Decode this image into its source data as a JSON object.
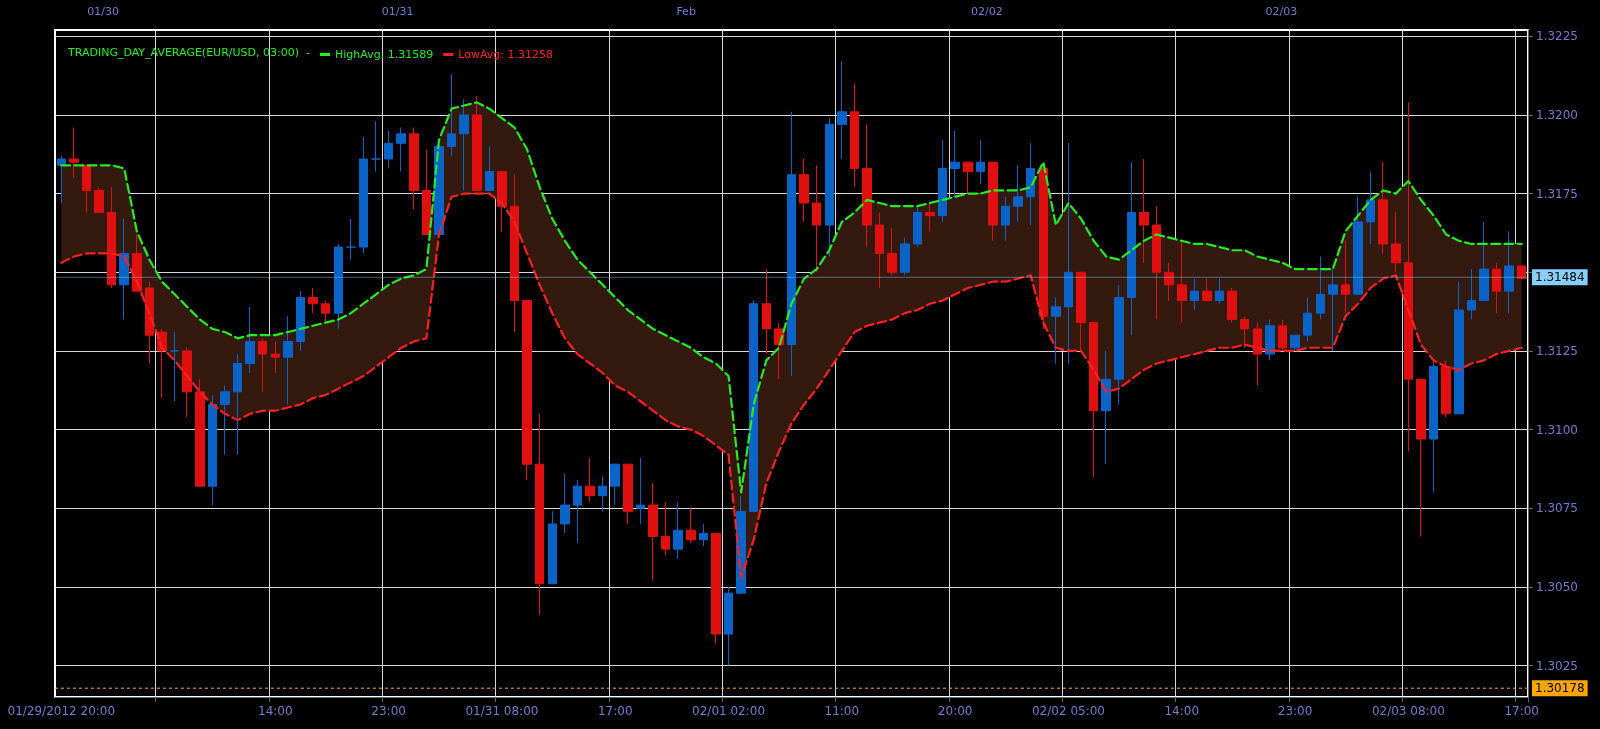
{
  "chart_data": {
    "type": "candlestick",
    "title": "TRADING_DAY_AVERAGE(EUR/USD, 03:00)  -",
    "categories": [
      "01/29/2012 20:00",
      null,
      null,
      null,
      null,
      null,
      null,
      null,
      null,
      null,
      null,
      null,
      null,
      null,
      null,
      null,
      null,
      "14:00",
      null,
      null,
      null,
      null,
      null,
      null,
      null,
      null,
      "23:00",
      null,
      null,
      null,
      null,
      null,
      null,
      null,
      null,
      "01/31 08:00",
      null,
      null,
      null,
      null,
      null,
      null,
      null,
      null,
      "17:00",
      null,
      null,
      null,
      null,
      null,
      null,
      null,
      null,
      "02/01 02:00",
      null,
      null,
      null,
      null,
      null,
      null,
      null,
      null,
      "11:00",
      null,
      null,
      null,
      null,
      null,
      null,
      null,
      null,
      "20:00",
      null,
      null,
      null,
      null,
      null,
      null,
      null,
      null,
      "02/02 05:00",
      null,
      null,
      null,
      null,
      null,
      null,
      null,
      null,
      "14:00",
      null,
      null,
      null,
      null,
      null,
      null,
      null,
      null,
      "23:00",
      null,
      null,
      null,
      null,
      null,
      null,
      null,
      null,
      "02/03 08:00",
      null,
      null,
      null,
      null,
      null,
      null,
      null,
      null,
      "17:00"
    ],
    "ohlc": [
      [
        1.3184,
        1.3187,
        1.3172,
        1.3186
      ],
      [
        1.3186,
        1.3196,
        1.318,
        1.3185
      ],
      [
        1.3184,
        1.3184,
        1.3169,
        1.3176
      ],
      [
        1.3176,
        1.3177,
        1.3169,
        1.3169
      ],
      [
        1.3169,
        1.3177,
        1.3145,
        1.3146
      ],
      [
        1.3146,
        1.3167,
        1.3135,
        1.3156
      ],
      [
        1.3156,
        1.3162,
        1.3144,
        1.3144
      ],
      [
        1.3145,
        1.3147,
        1.3121,
        1.313
      ],
      [
        1.3131,
        1.3132,
        1.311,
        1.3125
      ],
      [
        1.3125,
        1.3131,
        1.3109,
        1.3125
      ],
      [
        1.3125,
        1.3126,
        1.3104,
        1.3112
      ],
      [
        1.3112,
        1.3116,
        1.3082,
        1.3082
      ],
      [
        1.3082,
        1.3111,
        1.3076,
        1.3108
      ],
      [
        1.3108,
        1.3114,
        1.3092,
        1.3112
      ],
      [
        1.3112,
        1.3124,
        1.3092,
        1.3121
      ],
      [
        1.3121,
        1.3139,
        1.3118,
        1.3128
      ],
      [
        1.3128,
        1.3129,
        1.3112,
        1.3124
      ],
      [
        1.3124,
        1.3128,
        1.3118,
        1.3123
      ],
      [
        1.3123,
        1.3136,
        1.3108,
        1.3128
      ],
      [
        1.3128,
        1.3144,
        1.3125,
        1.3142
      ],
      [
        1.3142,
        1.3145,
        1.3137,
        1.314
      ],
      [
        1.314,
        1.3141,
        1.3134,
        1.3137
      ],
      [
        1.3137,
        1.3159,
        1.3132,
        1.3158
      ],
      [
        1.3158,
        1.3167,
        1.3154,
        1.3158
      ],
      [
        1.3158,
        1.3193,
        1.3156,
        1.3186
      ],
      [
        1.3186,
        1.3198,
        1.3182,
        1.3186
      ],
      [
        1.3186,
        1.3195,
        1.3183,
        1.3191
      ],
      [
        1.3191,
        1.3196,
        1.3182,
        1.3194
      ],
      [
        1.3194,
        1.3196,
        1.317,
        1.3176
      ],
      [
        1.3176,
        1.3189,
        1.3162,
        1.3162
      ],
      [
        1.3162,
        1.319,
        1.3162,
        1.319
      ],
      [
        1.319,
        1.3213,
        1.3187,
        1.3194
      ],
      [
        1.3194,
        1.3205,
        1.3176,
        1.32
      ],
      [
        1.32,
        1.3206,
        1.3176,
        1.3176
      ],
      [
        1.3176,
        1.319,
        1.3176,
        1.3182
      ],
      [
        1.3182,
        1.3182,
        1.3163,
        1.3171
      ],
      [
        1.3171,
        1.3181,
        1.3131,
        1.3141
      ],
      [
        1.3141,
        1.3141,
        1.3084,
        1.3089
      ],
      [
        1.3089,
        1.3105,
        1.3041,
        1.3051
      ],
      [
        1.3051,
        1.3074,
        1.3051,
        1.307
      ],
      [
        1.307,
        1.3086,
        1.3067,
        1.3076
      ],
      [
        1.3076,
        1.3084,
        1.3064,
        1.3082
      ],
      [
        1.3082,
        1.3091,
        1.3077,
        1.3079
      ],
      [
        1.3079,
        1.3085,
        1.3074,
        1.3082
      ],
      [
        1.3082,
        1.3089,
        1.3076,
        1.3089
      ],
      [
        1.3089,
        1.3089,
        1.307,
        1.3074
      ],
      [
        1.3075,
        1.3091,
        1.307,
        1.3076
      ],
      [
        1.3076,
        1.3083,
        1.3052,
        1.3066
      ],
      [
        1.3066,
        1.3077,
        1.306,
        1.3062
      ],
      [
        1.3062,
        1.3077,
        1.3059,
        1.3068
      ],
      [
        1.3068,
        1.3075,
        1.3064,
        1.3065
      ],
      [
        1.3065,
        1.307,
        1.3063,
        1.3067
      ],
      [
        1.3067,
        1.3067,
        1.3032,
        1.3035
      ],
      [
        1.3035,
        1.305,
        1.3025,
        1.3048
      ],
      [
        1.3048,
        1.3079,
        1.3048,
        1.3074
      ],
      [
        1.3074,
        1.3141,
        1.3074,
        1.314
      ],
      [
        1.314,
        1.3151,
        1.3124,
        1.3132
      ],
      [
        1.3132,
        1.3134,
        1.3116,
        1.3127
      ],
      [
        1.3127,
        1.3201,
        1.3117,
        1.3181
      ],
      [
        1.3181,
        1.3186,
        1.3166,
        1.3172
      ],
      [
        1.3172,
        1.3184,
        1.315,
        1.3165
      ],
      [
        1.3165,
        1.3199,
        1.3155,
        1.3197
      ],
      [
        1.3197,
        1.3217,
        1.3186,
        1.3201
      ],
      [
        1.3201,
        1.321,
        1.3177,
        1.3183
      ],
      [
        1.3183,
        1.3197,
        1.3158,
        1.3165
      ],
      [
        1.3165,
        1.3169,
        1.3145,
        1.3156
      ],
      [
        1.3156,
        1.3164,
        1.3149,
        1.315
      ],
      [
        1.315,
        1.3161,
        1.3149,
        1.3159
      ],
      [
        1.3159,
        1.3171,
        1.3158,
        1.3169
      ],
      [
        1.3169,
        1.3172,
        1.3163,
        1.3168
      ],
      [
        1.3168,
        1.3192,
        1.3166,
        1.3183
      ],
      [
        1.3183,
        1.3195,
        1.3174,
        1.3185
      ],
      [
        1.3185,
        1.3185,
        1.3175,
        1.3182
      ],
      [
        1.3182,
        1.3192,
        1.3178,
        1.3185
      ],
      [
        1.3185,
        1.3185,
        1.316,
        1.3165
      ],
      [
        1.3165,
        1.3174,
        1.316,
        1.3171
      ],
      [
        1.3171,
        1.3184,
        1.3166,
        1.3174
      ],
      [
        1.3174,
        1.3191,
        1.3165,
        1.3183
      ],
      [
        1.3183,
        1.3184,
        1.3132,
        1.3136
      ],
      [
        1.3136,
        1.3142,
        1.3121,
        1.3139
      ],
      [
        1.3139,
        1.3191,
        1.3121,
        1.315
      ],
      [
        1.315,
        1.315,
        1.3125,
        1.3134
      ],
      [
        1.3134,
        1.3134,
        1.3085,
        1.3106
      ],
      [
        1.3106,
        1.3125,
        1.3089,
        1.3116
      ],
      [
        1.3116,
        1.3146,
        1.3108,
        1.3142
      ],
      [
        1.3142,
        1.3185,
        1.313,
        1.3169
      ],
      [
        1.3169,
        1.3186,
        1.3153,
        1.3165
      ],
      [
        1.3165,
        1.3171,
        1.3135,
        1.315
      ],
      [
        1.315,
        1.3153,
        1.3141,
        1.3146
      ],
      [
        1.3146,
        1.316,
        1.3134,
        1.3141
      ],
      [
        1.3141,
        1.3148,
        1.3138,
        1.3144
      ],
      [
        1.3144,
        1.3148,
        1.3141,
        1.3141
      ],
      [
        1.3141,
        1.3148,
        1.314,
        1.3144
      ],
      [
        1.3144,
        1.3145,
        1.3134,
        1.3135
      ],
      [
        1.3135,
        1.3136,
        1.3126,
        1.3132
      ],
      [
        1.3132,
        1.3134,
        1.3114,
        1.3124
      ],
      [
        1.3124,
        1.3135,
        1.3122,
        1.3133
      ],
      [
        1.3133,
        1.3135,
        1.3125,
        1.3126
      ],
      [
        1.3126,
        1.313,
        1.3125,
        1.313
      ],
      [
        1.313,
        1.3142,
        1.3128,
        1.3137
      ],
      [
        1.3137,
        1.3155,
        1.3135,
        1.3143
      ],
      [
        1.3143,
        1.3151,
        1.3125,
        1.3146
      ],
      [
        1.3146,
        1.316,
        1.3137,
        1.3143
      ],
      [
        1.3143,
        1.3174,
        1.3143,
        1.3166
      ],
      [
        1.3166,
        1.3182,
        1.3159,
        1.3173
      ],
      [
        1.3173,
        1.3185,
        1.3156,
        1.3159
      ],
      [
        1.3159,
        1.3169,
        1.315,
        1.3153
      ],
      [
        1.3153,
        1.3204,
        1.3093,
        1.3116
      ],
      [
        1.3116,
        1.3116,
        1.3066,
        1.3097
      ],
      [
        1.3097,
        1.3122,
        1.308,
        1.312
      ],
      [
        1.312,
        1.3122,
        1.3104,
        1.3105
      ],
      [
        1.3105,
        1.3147,
        1.3105,
        1.3138
      ],
      [
        1.3138,
        1.3151,
        1.3135,
        1.3141
      ],
      [
        1.3141,
        1.3166,
        1.3141,
        1.3151
      ],
      [
        1.3151,
        1.3153,
        1.3137,
        1.3144
      ],
      [
        1.3144,
        1.3163,
        1.3137,
        1.3152
      ],
      [
        1.3152,
        1.3152,
        1.3148,
        1.3148
      ]
    ],
    "series": [
      {
        "name": "HighAvg: 1.31589",
        "type": "line",
        "color": "#22ee22",
        "lower": [
          1.3153,
          1.3155,
          1.3156,
          1.3156,
          1.3156,
          1.3155,
          1.3147,
          1.3137,
          1.3126,
          1.3122,
          1.3117,
          1.3112,
          1.3108,
          1.3105,
          1.3103,
          1.3105,
          1.3106,
          1.3106,
          1.3107,
          1.3108,
          1.311,
          1.3111,
          1.3113,
          1.3115,
          1.3117,
          1.312,
          1.3123,
          1.3126,
          1.3128,
          1.3129,
          1.3162,
          1.3174,
          1.3175,
          1.3175,
          1.3175,
          1.3172,
          1.3166,
          1.3156,
          1.3146,
          1.3137,
          1.3129,
          1.3124,
          1.3121,
          1.3118,
          1.3114,
          1.3112,
          1.3109,
          1.3106,
          1.3103,
          1.3101,
          1.31,
          1.3098,
          1.3095,
          1.3092,
          1.3053,
          1.3065,
          1.3083,
          1.3093,
          1.3102,
          1.3108,
          1.3113,
          1.3119,
          1.3125,
          1.3131,
          1.3133,
          1.3134,
          1.3135,
          1.3137,
          1.3138,
          1.314,
          1.3141,
          1.3143,
          1.3145,
          1.3146,
          1.3147,
          1.3147,
          1.3148,
          1.3149,
          1.3134,
          1.3126,
          1.3125,
          1.3125,
          1.3119,
          1.3112,
          1.3113,
          1.3116,
          1.3119,
          1.3121,
          1.3122,
          1.3123,
          1.3124,
          1.3125,
          1.3126,
          1.3126,
          1.3127,
          1.3126,
          1.3125,
          1.3125,
          1.3125,
          1.3126,
          1.3126,
          1.3126,
          1.3136,
          1.314,
          1.3145,
          1.3148,
          1.3149,
          1.3138,
          1.3127,
          1.3122,
          1.312,
          1.3119,
          1.3121,
          1.3122,
          1.3124,
          1.3125,
          1.3126
        ],
        "upper": [
          1.3184,
          1.3184,
          1.3184,
          1.3184,
          1.3184,
          1.3183,
          1.3163,
          1.3154,
          1.3147,
          1.3143,
          1.3139,
          1.3135,
          1.3132,
          1.3131,
          1.3129,
          1.313,
          1.313,
          1.313,
          1.3131,
          1.3132,
          1.3133,
          1.3134,
          1.3135,
          1.3137,
          1.314,
          1.3143,
          1.3146,
          1.3148,
          1.3149,
          1.3151,
          1.3192,
          1.3202,
          1.3203,
          1.3204,
          1.3202,
          1.3199,
          1.3196,
          1.3189,
          1.3177,
          1.3167,
          1.316,
          1.3154,
          1.315,
          1.3146,
          1.3142,
          1.3138,
          1.3135,
          1.3132,
          1.313,
          1.3128,
          1.3126,
          1.3123,
          1.3121,
          1.3117,
          1.308,
          1.3108,
          1.3122,
          1.3126,
          1.314,
          1.3148,
          1.3151,
          1.3157,
          1.3166,
          1.3169,
          1.3173,
          1.3172,
          1.3171,
          1.3171,
          1.3171,
          1.3172,
          1.3173,
          1.3174,
          1.3175,
          1.3175,
          1.3176,
          1.3176,
          1.3176,
          1.3177,
          1.3185,
          1.3165,
          1.3172,
          1.3167,
          1.316,
          1.3155,
          1.3154,
          1.3157,
          1.316,
          1.3162,
          1.3161,
          1.316,
          1.3159,
          1.3159,
          1.3158,
          1.3157,
          1.3157,
          1.3155,
          1.3154,
          1.3153,
          1.3151,
          1.3151,
          1.3151,
          1.3151,
          1.3163,
          1.3168,
          1.3173,
          1.3176,
          1.3175,
          1.3179,
          1.3173,
          1.3168,
          1.3162,
          1.316,
          1.3159,
          1.3159,
          1.3159,
          1.3159,
          1.3159
        ],
        "values": [
          1.3184,
          1.3184,
          1.3184,
          1.3184,
          1.3184,
          1.3183,
          1.3163,
          1.3154,
          1.3147,
          1.3143,
          1.3139,
          1.3135,
          1.3132,
          1.3131,
          1.3129,
          1.313,
          1.313,
          1.313,
          1.3131,
          1.3132,
          1.3133,
          1.3134,
          1.3135,
          1.3137,
          1.314,
          1.3143,
          1.3146,
          1.3148,
          1.3149,
          1.3151,
          1.3192,
          1.3202,
          1.3203,
          1.3204,
          1.3202,
          1.3199,
          1.3196,
          1.3189,
          1.3177,
          1.3167,
          1.316,
          1.3154,
          1.315,
          1.3146,
          1.3142,
          1.3138,
          1.3135,
          1.3132,
          1.313,
          1.3128,
          1.3126,
          1.3123,
          1.3121,
          1.3117,
          1.308,
          1.3108,
          1.3122,
          1.3126,
          1.314,
          1.3148,
          1.3151,
          1.3157,
          1.3166,
          1.3169,
          1.3173,
          1.3172,
          1.3171,
          1.3171,
          1.3171,
          1.3172,
          1.3173,
          1.3174,
          1.3175,
          1.3175,
          1.3176,
          1.3176,
          1.3176,
          1.3177,
          1.3185,
          1.3165,
          1.3172,
          1.3167,
          1.316,
          1.3155,
          1.3154,
          1.3157,
          1.316,
          1.3162,
          1.3161,
          1.316,
          1.3159,
          1.3159,
          1.3158,
          1.3157,
          1.3157,
          1.3155,
          1.3154,
          1.3153,
          1.3151,
          1.3151,
          1.3151,
          1.3151,
          1.3163,
          1.3168,
          1.3173,
          1.3176,
          1.3175,
          1.3179,
          1.3173,
          1.3168,
          1.3162,
          1.316,
          1.3159,
          1.3159,
          1.3159,
          1.3159,
          1.3159
        ]
      },
      {
        "name": "LowAvg: 1.31258",
        "type": "line",
        "color": "#ff2020",
        "values": [
          1.3153,
          1.3155,
          1.3156,
          1.3156,
          1.3156,
          1.3155,
          1.3147,
          1.3137,
          1.3126,
          1.3122,
          1.3117,
          1.3112,
          1.3108,
          1.3105,
          1.3103,
          1.3105,
          1.3106,
          1.3106,
          1.3107,
          1.3108,
          1.311,
          1.3111,
          1.3113,
          1.3115,
          1.3117,
          1.312,
          1.3123,
          1.3126,
          1.3128,
          1.3129,
          1.3162,
          1.3174,
          1.3175,
          1.3175,
          1.3175,
          1.3172,
          1.3166,
          1.3156,
          1.3146,
          1.3137,
          1.3129,
          1.3124,
          1.3121,
          1.3118,
          1.3114,
          1.3112,
          1.3109,
          1.3106,
          1.3103,
          1.3101,
          1.31,
          1.3098,
          1.3095,
          1.3092,
          1.3053,
          1.3065,
          1.3083,
          1.3093,
          1.3102,
          1.3108,
          1.3113,
          1.3119,
          1.3125,
          1.3131,
          1.3133,
          1.3134,
          1.3135,
          1.3137,
          1.3138,
          1.314,
          1.3141,
          1.3143,
          1.3145,
          1.3146,
          1.3147,
          1.3147,
          1.3148,
          1.3149,
          1.3134,
          1.3126,
          1.3125,
          1.3125,
          1.3119,
          1.3112,
          1.3113,
          1.3116,
          1.3119,
          1.3121,
          1.3122,
          1.3123,
          1.3124,
          1.3125,
          1.3126,
          1.3126,
          1.3127,
          1.3126,
          1.3125,
          1.3125,
          1.3125,
          1.3126,
          1.3126,
          1.3126,
          1.3136,
          1.314,
          1.3145,
          1.3148,
          1.3149,
          1.3138,
          1.3127,
          1.3122,
          1.312,
          1.3119,
          1.3121,
          1.3122,
          1.3124,
          1.3125,
          1.3126
        ]
      }
    ],
    "ylim": [
      1.3015,
      1.3227
    ],
    "yticks": [
      1.3025,
      {
        "value": 1.305,
        "label": "1.3050"
      },
      1.3075,
      {
        "value": 1.31,
        "label": "1.3100"
      },
      1.3125,
      {
        "value": 1.315,
        "label": null
      },
      1.3175,
      {
        "value": 1.32,
        "label": "1.3200"
      },
      1.3225
    ],
    "ref_lines": [
      {
        "axis": "y",
        "value": 1.31484,
        "label": "1.31484",
        "color": "#87cefa"
      },
      {
        "axis": "y",
        "value": 1.30178,
        "label": "1.30178",
        "color": "#ffa500",
        "line_style": "dashed"
      }
    ],
    "annotations": [
      "01/30",
      "01/31",
      "Feb",
      "02/02",
      "02/03"
    ],
    "grid": true,
    "legend": "top left",
    "marker": "none",
    "line_style": "dashed"
  }
}
